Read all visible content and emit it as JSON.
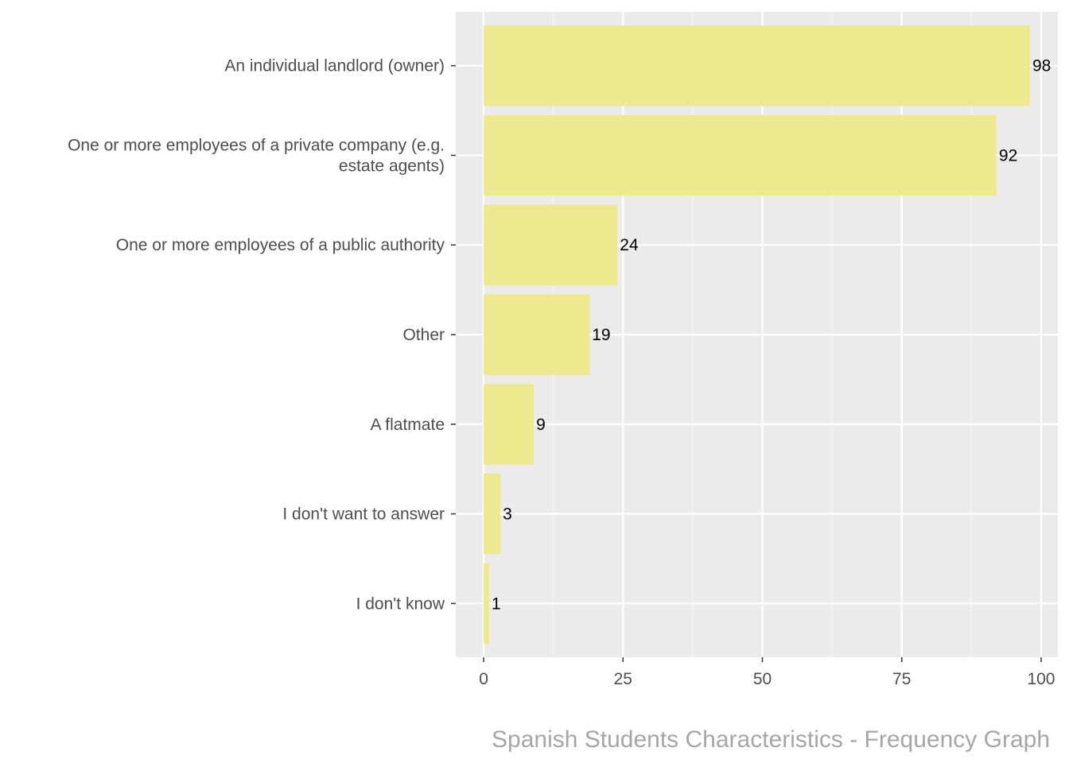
{
  "chart_data": {
    "type": "bar",
    "orientation": "horizontal",
    "categories": [
      "An individual landlord (owner)",
      "One or more employees of a private company (e.g. estate agents)",
      "One or more employees of a public authority",
      "Other",
      "A flatmate",
      "I don't want to answer",
      "I don't know"
    ],
    "category_lines": [
      [
        "An individual landlord (owner)"
      ],
      [
        "One or more employees of a private company (e.g.",
        "estate agents)"
      ],
      [
        "One or more employees of a public authority"
      ],
      [
        "Other"
      ],
      [
        "A flatmate"
      ],
      [
        "I don't want to answer"
      ],
      [
        "I don't know"
      ]
    ],
    "values": [
      98,
      92,
      24,
      19,
      9,
      3,
      1
    ],
    "data_labels": [
      "98",
      "92",
      "24",
      "19",
      "9",
      "3",
      "1"
    ],
    "xlim": [
      -5,
      103
    ],
    "xticks": [
      0,
      25,
      50,
      75,
      100
    ],
    "xtick_labels": [
      "0",
      "25",
      "50",
      "75",
      "100"
    ],
    "xlabel": "",
    "ylabel": "",
    "caption": "Spanish Students Characteristics - Frequency Graph",
    "grid": true,
    "legend": "none",
    "colors": {
      "bar": "#eee88f",
      "panel": "#ebebeb",
      "grid_major": "#ffffff",
      "grid_minor": "#f5f5f5",
      "axis_text": "#4d4d4d",
      "tick": "#333333",
      "data_label": "#000000",
      "caption": "#a6a6a6"
    }
  }
}
